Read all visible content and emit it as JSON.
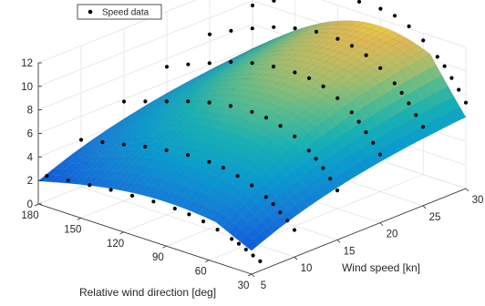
{
  "chart_data": {
    "type": "surface3d",
    "title": "",
    "legend": {
      "entries": [
        "Speed data"
      ],
      "marker": "filled-circle",
      "marker_color": "#000000",
      "placement": "top-left"
    },
    "x_axis": {
      "label": "Relative wind direction [deg]",
      "ticks": [
        180,
        150,
        120,
        90,
        60,
        30
      ],
      "range": [
        30,
        180
      ]
    },
    "y_axis": {
      "label": "Wind speed [kn]",
      "ticks": [
        5,
        10,
        15,
        20,
        25,
        30
      ],
      "range": [
        5,
        30
      ]
    },
    "z_axis": {
      "label": "",
      "ticks": [
        0,
        2,
        4,
        6,
        8,
        10,
        12
      ],
      "range": [
        0,
        12
      ]
    },
    "grid": true,
    "colormap": "parula",
    "surface_model": "boat speed as a function of relative wind direction and wind speed (polar surface)",
    "speed_data": [
      {
        "wind_speed": 6,
        "directions": [
          180,
          165,
          150,
          135,
          120,
          105,
          90,
          80,
          70,
          60,
          50,
          45,
          40,
          35,
          30
        ],
        "speeds": [
          2.1,
          2.3,
          2.5,
          2.7,
          2.8,
          2.9,
          2.9,
          2.8,
          2.6,
          2.3,
          1.9,
          1.7,
          1.4,
          1.1,
          0.8
        ]
      },
      {
        "wind_speed": 10,
        "directions": [
          180,
          165,
          150,
          135,
          120,
          105,
          90,
          80,
          70,
          60,
          50,
          45,
          40,
          35,
          30
        ],
        "speeds": [
          4.0,
          4.4,
          4.8,
          5.2,
          5.5,
          5.7,
          5.7,
          5.6,
          5.3,
          4.9,
          4.3,
          3.9,
          3.4,
          2.9,
          2.3
        ]
      },
      {
        "wind_speed": 15,
        "directions": [
          180,
          165,
          150,
          135,
          120,
          105,
          90,
          80,
          70,
          60,
          50,
          45,
          40,
          35,
          30
        ],
        "speeds": [
          5.8,
          6.4,
          7.0,
          7.6,
          8.1,
          8.4,
          8.5,
          8.4,
          8.1,
          7.6,
          6.8,
          6.3,
          5.7,
          5.0,
          4.2
        ]
      },
      {
        "wind_speed": 20,
        "directions": [
          180,
          165,
          150,
          135,
          120,
          105,
          90,
          80,
          70,
          60,
          50,
          45,
          40,
          35,
          30
        ],
        "speeds": [
          7.3,
          8.1,
          8.8,
          9.5,
          10.0,
          10.3,
          10.4,
          10.3,
          10.0,
          9.4,
          8.6,
          8.0,
          7.3,
          6.6,
          5.8
        ]
      },
      {
        "wind_speed": 25,
        "directions": [
          180,
          165,
          150,
          135,
          120,
          105,
          90,
          80,
          70,
          60,
          50,
          45,
          40,
          35,
          30
        ],
        "speeds": [
          8.6,
          9.5,
          10.3,
          11.0,
          11.5,
          11.8,
          11.8,
          11.6,
          11.2,
          10.5,
          9.6,
          9.0,
          8.3,
          7.5,
          6.7
        ]
      },
      {
        "wind_speed": 30,
        "directions": [
          180,
          165,
          150,
          135,
          120,
          105,
          90,
          80,
          70,
          60,
          50,
          45,
          40,
          35,
          30
        ],
        "speeds": [
          9.6,
          10.6,
          11.5,
          12.2,
          12.7,
          12.9,
          12.9,
          12.7,
          12.2,
          11.4,
          10.4,
          9.8,
          9.0,
          8.2,
          7.3
        ]
      }
    ]
  }
}
